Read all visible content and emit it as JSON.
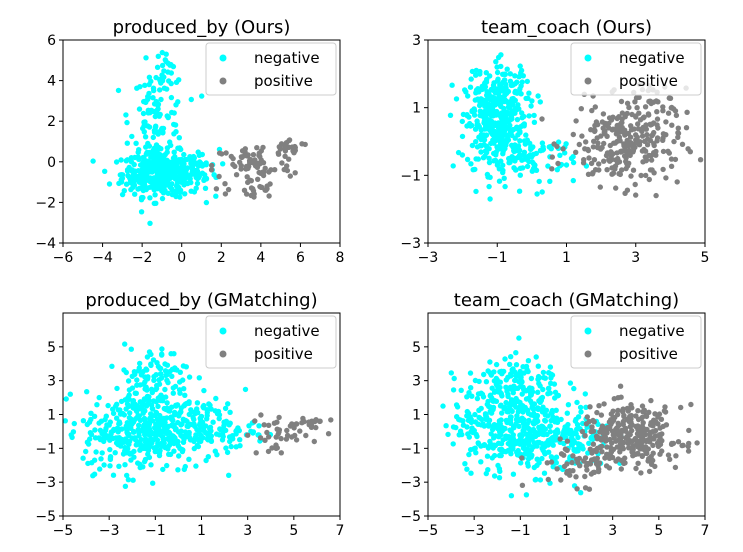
{
  "colors": {
    "negative": "#00ffff",
    "positive": "#808080"
  },
  "chart_data": [
    {
      "type": "scatter",
      "title": "produced_by (Ours)",
      "xlim": [
        -6,
        8
      ],
      "ylim": [
        -4,
        6
      ],
      "xticks": [
        "−6",
        "−4",
        "−2",
        "0",
        "2",
        "4",
        "6",
        "8"
      ],
      "yticks": [
        "−4",
        "−2",
        "0",
        "2",
        "4",
        "6"
      ],
      "legend_position": "top-right",
      "series": [
        {
          "name": "negative",
          "clusters": [
            {
              "cx": -1.0,
              "cy": -0.6,
              "sx": 1.0,
              "sy": 0.55,
              "n": 420
            },
            {
              "cx": -1.2,
              "cy": 2.2,
              "sx": 0.7,
              "sy": 1.3,
              "n": 120
            },
            {
              "cx": -1.0,
              "cy": 4.6,
              "sx": 0.35,
              "sy": 0.4,
              "n": 12
            },
            {
              "cx": 0.9,
              "cy": -0.3,
              "sx": 0.5,
              "sy": 0.45,
              "n": 30
            }
          ]
        },
        {
          "name": "positive",
          "clusters": [
            {
              "cx": 3.6,
              "cy": -0.2,
              "sx": 1.0,
              "sy": 0.55,
              "n": 70
            },
            {
              "cx": 5.5,
              "cy": 0.7,
              "sx": 0.5,
              "sy": 0.2,
              "n": 25
            },
            {
              "cx": 3.5,
              "cy": -1.4,
              "sx": 0.6,
              "sy": 0.3,
              "n": 20
            }
          ]
        }
      ]
    },
    {
      "type": "scatter",
      "title": "team_coach (Ours)",
      "xlim": [
        -3,
        5
      ],
      "ylim": [
        -3,
        3
      ],
      "xticks": [
        "−3",
        "−1",
        "1",
        "3",
        "5"
      ],
      "yticks": [
        "−3",
        "−1",
        "1",
        "3"
      ],
      "legend_position": "top-right",
      "series": [
        {
          "name": "negative",
          "clusters": [
            {
              "cx": -1.0,
              "cy": 0.5,
              "sx": 0.45,
              "sy": 0.7,
              "n": 380
            },
            {
              "cx": -0.8,
              "cy": 1.6,
              "sx": 0.4,
              "sy": 0.4,
              "n": 60
            },
            {
              "cx": 0.2,
              "cy": -0.6,
              "sx": 0.5,
              "sy": 0.4,
              "n": 60
            }
          ]
        },
        {
          "name": "positive",
          "clusters": [
            {
              "cx": 2.7,
              "cy": -0.1,
              "sx": 0.8,
              "sy": 0.6,
              "n": 250
            },
            {
              "cx": 3.4,
              "cy": 1.1,
              "sx": 0.5,
              "sy": 0.4,
              "n": 40
            }
          ]
        }
      ]
    },
    {
      "type": "scatter",
      "title": "produced_by (GMatching)",
      "xlim": [
        -5,
        7
      ],
      "ylim": [
        -5,
        7
      ],
      "xticks": [
        "−5",
        "−3",
        "−1",
        "1",
        "3",
        "5",
        "7"
      ],
      "yticks": [
        "−5",
        "−3",
        "−1",
        "1",
        "3",
        "5"
      ],
      "legend_position": "top-right",
      "series": [
        {
          "name": "negative",
          "clusters": [
            {
              "cx": -1.5,
              "cy": 0.0,
              "sx": 1.3,
              "sy": 1.2,
              "n": 400
            },
            {
              "cx": -1.2,
              "cy": 3.2,
              "sx": 0.8,
              "sy": 0.9,
              "n": 100
            },
            {
              "cx": 1.0,
              "cy": 0.3,
              "sx": 1.2,
              "sy": 0.8,
              "n": 150
            }
          ]
        },
        {
          "name": "positive",
          "clusters": [
            {
              "cx": 4.2,
              "cy": -0.3,
              "sx": 0.6,
              "sy": 0.7,
              "n": 35
            },
            {
              "cx": 5.6,
              "cy": 0.5,
              "sx": 0.4,
              "sy": 0.25,
              "n": 20
            }
          ]
        }
      ]
    },
    {
      "type": "scatter",
      "title": "team_coach (GMatching)",
      "xlim": [
        -5,
        7
      ],
      "ylim": [
        -5,
        7
      ],
      "xticks": [
        "−5",
        "−3",
        "−1",
        "1",
        "3",
        "5",
        "7"
      ],
      "yticks": [
        "−5",
        "−3",
        "−1",
        "1",
        "3",
        "5"
      ],
      "legend_position": "top-right",
      "series": [
        {
          "name": "negative",
          "clusters": [
            {
              "cx": -1.5,
              "cy": 0.5,
              "sx": 1.2,
              "sy": 1.4,
              "n": 400
            },
            {
              "cx": -1.0,
              "cy": 3.0,
              "sx": 0.9,
              "sy": 0.8,
              "n": 80
            },
            {
              "cx": 1.0,
              "cy": -0.5,
              "sx": 1.0,
              "sy": 1.0,
              "n": 150
            }
          ]
        },
        {
          "name": "positive",
          "clusters": [
            {
              "cx": 3.8,
              "cy": -0.3,
              "sx": 1.1,
              "sy": 0.9,
              "n": 300
            },
            {
              "cx": 1.5,
              "cy": -2.0,
              "sx": 1.0,
              "sy": 0.6,
              "n": 50
            }
          ]
        }
      ]
    }
  ]
}
